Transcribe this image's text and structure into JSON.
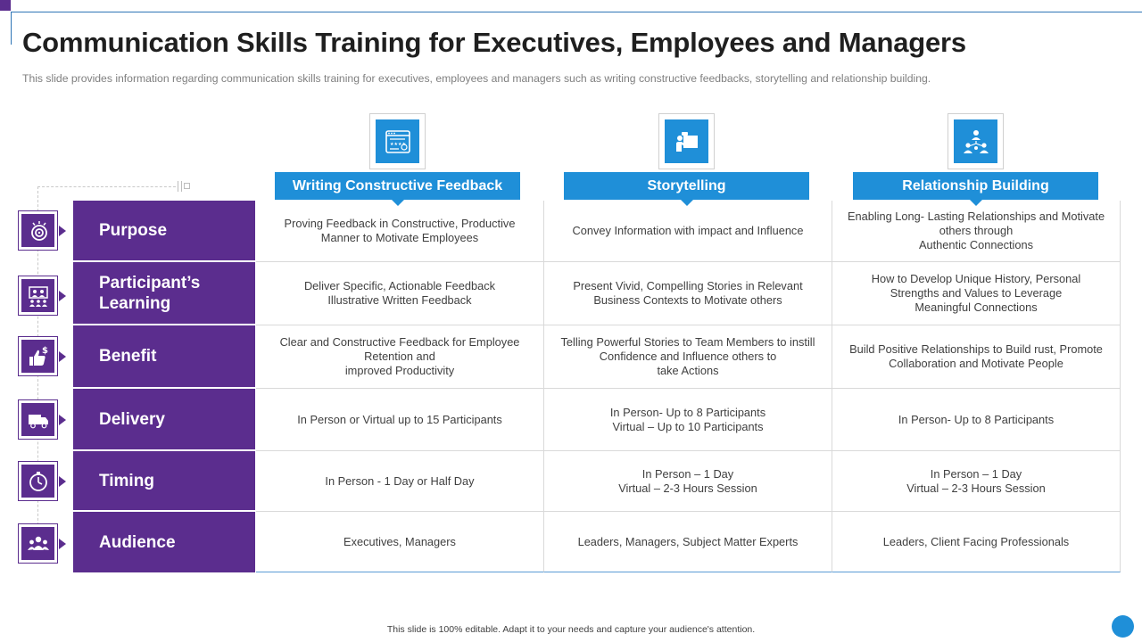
{
  "header": {
    "title": "Communication Skills Training for Executives, Employees and Managers",
    "subtitle": "This slide provides  information  regarding  communication  skills training for  executives,  employees and  managers  such as writing constructive feedbacks, storytelling and relationship building."
  },
  "columns": [
    {
      "label": "Writing Constructive Feedback",
      "icon": "feedback-form-icon"
    },
    {
      "label": "Storytelling",
      "icon": "presenter-icon"
    },
    {
      "label": "Relationship Building",
      "icon": "network-people-icon"
    }
  ],
  "rows": [
    {
      "label": "Purpose",
      "icon": "target-icon",
      "cells": [
        "Proving  Feedback in Constructive,  Productive\nManner to Motivate  Employees",
        "Convey  Information  with impact and Influence",
        "Enabling Long- Lasting Relationships and Motivate\nothers through\nAuthentic Connections"
      ]
    },
    {
      "label": "Participant’s\nLearning",
      "icon": "group-learning-icon",
      "cells": [
        "Deliver  Specific, Actionable Feedback\nIllustrative  Written Feedback",
        "Present Vivid,  Compelling  Stories in Relevant\nBusiness Contexts to Motivate  others",
        "How to Develop  Unique  History,  Personal\nStrengths  and Values to Leverage\nMeaningful  Connections"
      ]
    },
    {
      "label": "Benefit",
      "icon": "thumbs-up-dollar-icon",
      "cells": [
        "Clear and Constructive  Feedback for Employee\nRetention  and\nimproved  Productivity",
        "Telling Powerful  Stories to Team Members  to instill\nConfidence  and Influence  others to\ntake Actions",
        "Build Positive Relationships  to Build rust,  Promote\nCollaboration  and Motivate  People"
      ]
    },
    {
      "label": "Delivery",
      "icon": "delivery-truck-icon",
      "cells": [
        "In Person or Virtual up to 15 Participants",
        "In Person- Up to 8 Participants\nVirtual – Up to 10 Participants",
        "In Person- Up to 8 Participants"
      ]
    },
    {
      "label": "Timing",
      "icon": "stopwatch-icon",
      "cells": [
        "In Person - 1 Day or Half Day",
        "In Person – 1 Day\nVirtual – 2-3 Hours Session",
        "In Person – 1 Day\nVirtual – 2-3 Hours Session"
      ]
    },
    {
      "label": "Audience",
      "icon": "audience-group-icon",
      "cells": [
        "Executives, Managers",
        "Leaders,  Managers,  Subject Matter Experts",
        "Leaders,  Client Facing Professionals"
      ]
    }
  ],
  "footer": {
    "note": "This slide is 100% editable.  Adapt it to your needs and capture your audience's attention."
  },
  "colors": {
    "purple": "#5b2d8e",
    "blue": "#1f8fd8"
  }
}
